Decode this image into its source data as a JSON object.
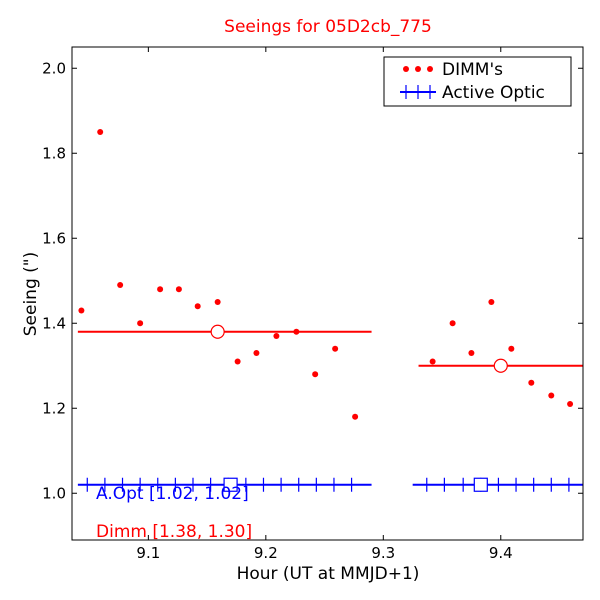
{
  "chart_data": {
    "type": "scatter",
    "title": "Seeings for 05D2cb_775",
    "xlabel": "Hour (UT at MMJD+1)",
    "ylabel": "Seeing (\")",
    "xlim": [
      9.035,
      9.47
    ],
    "ylim": [
      0.89,
      2.05
    ],
    "x_ticks": [
      9.1,
      9.2,
      9.3,
      9.4
    ],
    "x_tick_labels": [
      "9.1",
      "9.2",
      "9.3",
      "9.4"
    ],
    "y_ticks": [
      1.0,
      1.2,
      1.4,
      1.6,
      1.8,
      2.0
    ],
    "y_tick_labels": [
      "1.0",
      "1.2",
      "1.4",
      "1.6",
      "1.8",
      "2.0"
    ],
    "grid": false,
    "legend_position": "top-right",
    "series": [
      {
        "name": "DIMM's",
        "marker": "dot",
        "color": "#ff0000",
        "points": [
          [
            9.043,
            1.43
          ],
          [
            9.059,
            1.85
          ],
          [
            9.076,
            1.49
          ],
          [
            9.093,
            1.4
          ],
          [
            9.11,
            1.48
          ],
          [
            9.126,
            1.48
          ],
          [
            9.142,
            1.44
          ],
          [
            9.159,
            1.45
          ],
          [
            9.176,
            1.31
          ],
          [
            9.192,
            1.33
          ],
          [
            9.209,
            1.37
          ],
          [
            9.226,
            1.38
          ],
          [
            9.242,
            1.28
          ],
          [
            9.259,
            1.34
          ],
          [
            9.276,
            1.18
          ],
          [
            9.342,
            1.31
          ],
          [
            9.359,
            1.4
          ],
          [
            9.375,
            1.33
          ],
          [
            9.392,
            1.45
          ],
          [
            9.409,
            1.34
          ],
          [
            9.426,
            1.26
          ],
          [
            9.443,
            1.23
          ],
          [
            9.459,
            1.21
          ]
        ]
      },
      {
        "name": "Active Optic",
        "marker": "plus",
        "color": "#0000ff",
        "points": [
          [
            9.048,
            1.02
          ],
          [
            9.063,
            1.02
          ],
          [
            9.078,
            1.02
          ],
          [
            9.093,
            1.02
          ],
          [
            9.108,
            1.02
          ],
          [
            9.123,
            1.02
          ],
          [
            9.138,
            1.02
          ],
          [
            9.153,
            1.02
          ],
          [
            9.168,
            1.02
          ],
          [
            9.183,
            1.02
          ],
          [
            9.198,
            1.02
          ],
          [
            9.213,
            1.02
          ],
          [
            9.228,
            1.02
          ],
          [
            9.243,
            1.02
          ],
          [
            9.258,
            1.02
          ],
          [
            9.273,
            1.02
          ],
          [
            9.337,
            1.02
          ],
          [
            9.352,
            1.02
          ],
          [
            9.368,
            1.02
          ],
          [
            9.383,
            1.02
          ],
          [
            9.398,
            1.02
          ],
          [
            9.413,
            1.02
          ],
          [
            9.428,
            1.02
          ],
          [
            9.443,
            1.02
          ],
          [
            9.458,
            1.02
          ]
        ]
      }
    ],
    "dimm_means": [
      {
        "x_start": 9.04,
        "x_end": 9.29,
        "value": 1.38,
        "marker_x": 9.159
      },
      {
        "x_start": 9.33,
        "x_end": 9.47,
        "value": 1.3,
        "marker_x": 9.4
      }
    ],
    "ao_means": [
      {
        "x_start": 9.04,
        "x_end": 9.29,
        "value": 1.02,
        "marker_x": 9.17
      },
      {
        "x_start": 9.325,
        "x_end": 9.47,
        "value": 1.02,
        "marker_x": 9.383
      }
    ],
    "annotations": {
      "ao_text": "A.Opt [1.02, 1.02]",
      "dimm_text": "Dimm [1.38, 1.30]"
    },
    "colors": {
      "dimm": "#ff0000",
      "ao": "#0000ff",
      "title": "#ff0000"
    }
  }
}
